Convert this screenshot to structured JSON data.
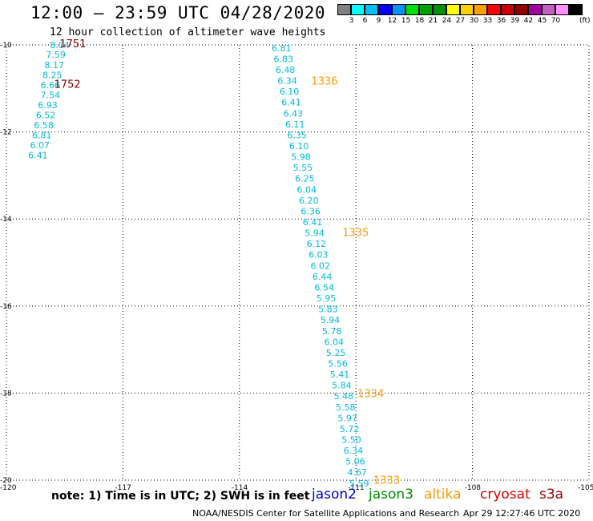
{
  "header": {
    "title": "12:00 – 23:59 UTC 04/28/2020",
    "subtitle": "12 hour collection of altimeter wave heights"
  },
  "color_scale": {
    "unit": "(ft)",
    "colors": [
      "#808080",
      "#00ffff",
      "#00bfff",
      "#0000ff",
      "#0095ff",
      "#00e000",
      "#00a000",
      "#009000",
      "#ffff00",
      "#ffd000",
      "#ffa000",
      "#ff0000",
      "#cc0000",
      "#900000",
      "#a000a0",
      "#c060c0",
      "#ff90ff",
      "#000000"
    ],
    "ticks": [
      "3",
      "6",
      "9",
      "12",
      "15",
      "18",
      "21",
      "24",
      "27",
      "30",
      "33",
      "36",
      "39",
      "42",
      "45",
      "70"
    ]
  },
  "note": "note: 1) Time is in UTC; 2) SWH is in feet",
  "satellites": [
    {
      "name": "jason2",
      "color": "#0000cc"
    },
    {
      "name": "jason3",
      "color": "#009000"
    },
    {
      "name": "altika",
      "color": "#ff9900"
    },
    {
      "name": "cryosat",
      "color": "#dd0000"
    },
    {
      "name": "s3a",
      "color": "#990000"
    }
  ],
  "footer": {
    "credit": "NOAA/NESDIS Center for Satellite Applications and Research",
    "timestamp": "Apr 29 12:27:46 UTC 2020"
  },
  "chart_data": {
    "type": "scatter",
    "xlim": [
      -120,
      -105
    ],
    "ylim": [
      -20,
      -10
    ],
    "xticks": [
      -120,
      -117,
      -114,
      -111,
      -108,
      -105
    ],
    "yticks": [
      -10,
      -12,
      -14,
      -16,
      -18,
      -20
    ],
    "xtick_labels": [
      "-120",
      "-117",
      "-114",
      "-111",
      "-108",
      "-105"
    ],
    "ytick_labels": [
      "-10",
      "-12",
      "-14",
      "-16",
      "-18",
      "-20"
    ],
    "grid": true,
    "series": [
      {
        "color": "#00bbdd",
        "points": [
          {
            "x": -118.88,
            "y": -10.0,
            "v": "8.04"
          },
          {
            "x": -118.98,
            "y": -10.22,
            "v": "7.59"
          },
          {
            "x": -119.02,
            "y": -10.46,
            "v": "8.17"
          },
          {
            "x": -119.07,
            "y": -10.69,
            "v": "8.25"
          },
          {
            "x": -119.12,
            "y": -10.92,
            "v": "6.66"
          },
          {
            "x": -119.12,
            "y": -11.15,
            "v": "7.54"
          },
          {
            "x": -119.19,
            "y": -11.38,
            "v": "6.93"
          },
          {
            "x": -119.24,
            "y": -11.61,
            "v": "6.52"
          },
          {
            "x": -119.29,
            "y": -11.84,
            "v": "6.58"
          },
          {
            "x": -119.34,
            "y": -12.07,
            "v": "6.81"
          },
          {
            "x": -119.39,
            "y": -12.3,
            "v": "6.07"
          },
          {
            "x": -119.44,
            "y": -12.53,
            "v": "6.41"
          }
        ]
      },
      {
        "color": "#00bbdd",
        "points": [
          {
            "x": -113.17,
            "y": -10.07,
            "v": "6.81"
          },
          {
            "x": -113.12,
            "y": -10.32,
            "v": "6.83"
          },
          {
            "x": -113.07,
            "y": -10.57,
            "v": "6.48"
          },
          {
            "x": -113.02,
            "y": -10.82,
            "v": "6.34"
          },
          {
            "x": -112.97,
            "y": -11.07,
            "v": "6.10"
          },
          {
            "x": -112.92,
            "y": -11.32,
            "v": "6.41"
          },
          {
            "x": -112.87,
            "y": -11.57,
            "v": "6.43"
          },
          {
            "x": -112.82,
            "y": -11.82,
            "v": "6.11"
          },
          {
            "x": -112.77,
            "y": -12.07,
            "v": "6.35"
          },
          {
            "x": -112.72,
            "y": -12.32,
            "v": "6.10"
          },
          {
            "x": -112.67,
            "y": -12.57,
            "v": "5.98"
          },
          {
            "x": -112.62,
            "y": -12.82,
            "v": "5.55"
          },
          {
            "x": -112.57,
            "y": -13.07,
            "v": "6.25"
          },
          {
            "x": -112.52,
            "y": -13.32,
            "v": "6.04"
          },
          {
            "x": -112.47,
            "y": -13.57,
            "v": "6.20"
          },
          {
            "x": -112.42,
            "y": -13.82,
            "v": "6.36"
          },
          {
            "x": -112.37,
            "y": -14.07,
            "v": "6.41"
          },
          {
            "x": -112.32,
            "y": -14.32,
            "v": "5.94"
          },
          {
            "x": -112.27,
            "y": -14.57,
            "v": "6.12"
          },
          {
            "x": -112.22,
            "y": -14.82,
            "v": "6.03"
          },
          {
            "x": -112.17,
            "y": -15.07,
            "v": "6.02"
          },
          {
            "x": -112.12,
            "y": -15.32,
            "v": "6.44"
          },
          {
            "x": -112.07,
            "y": -15.57,
            "v": "6.54"
          },
          {
            "x": -112.02,
            "y": -15.82,
            "v": "5.95"
          },
          {
            "x": -111.97,
            "y": -16.07,
            "v": "5.83"
          },
          {
            "x": -111.92,
            "y": -16.32,
            "v": "5.94"
          },
          {
            "x": -111.87,
            "y": -16.57,
            "v": "5.78"
          },
          {
            "x": -111.82,
            "y": -16.82,
            "v": "6.04"
          },
          {
            "x": -111.77,
            "y": -17.07,
            "v": "5.25"
          },
          {
            "x": -111.72,
            "y": -17.32,
            "v": "5.56"
          },
          {
            "x": -111.67,
            "y": -17.57,
            "v": "5.41"
          },
          {
            "x": -111.62,
            "y": -17.82,
            "v": "5.84"
          },
          {
            "x": -111.57,
            "y": -18.07,
            "v": "5.48"
          },
          {
            "x": -111.52,
            "y": -18.32,
            "v": "5.58"
          },
          {
            "x": -111.47,
            "y": -18.57,
            "v": "5.97"
          },
          {
            "x": -111.42,
            "y": -18.82,
            "v": "5.72"
          },
          {
            "x": -111.37,
            "y": -19.07,
            "v": "5.50"
          },
          {
            "x": -111.32,
            "y": -19.32,
            "v": "6.34"
          },
          {
            "x": -111.27,
            "y": -19.57,
            "v": "5.06"
          },
          {
            "x": -111.22,
            "y": -19.82,
            "v": "4.67"
          },
          {
            "x": -111.17,
            "y": -20.07,
            "v": "5.59"
          }
        ]
      }
    ],
    "annotations": [
      {
        "text": "1751",
        "x": -118.63,
        "y": -9.96,
        "color": "#880000"
      },
      {
        "text": "1752",
        "x": -118.77,
        "y": -10.89,
        "color": "#880000"
      },
      {
        "text": "1336",
        "x": -112.15,
        "y": -10.82,
        "color": "#ff9900"
      },
      {
        "text": "1335",
        "x": -111.35,
        "y": -14.3,
        "color": "#ff9900"
      },
      {
        "text": "1334",
        "x": -110.96,
        "y": -18.0,
        "color": "#ff9900"
      },
      {
        "text": "1333",
        "x": -110.55,
        "y": -19.99,
        "color": "#ff9900"
      }
    ]
  }
}
